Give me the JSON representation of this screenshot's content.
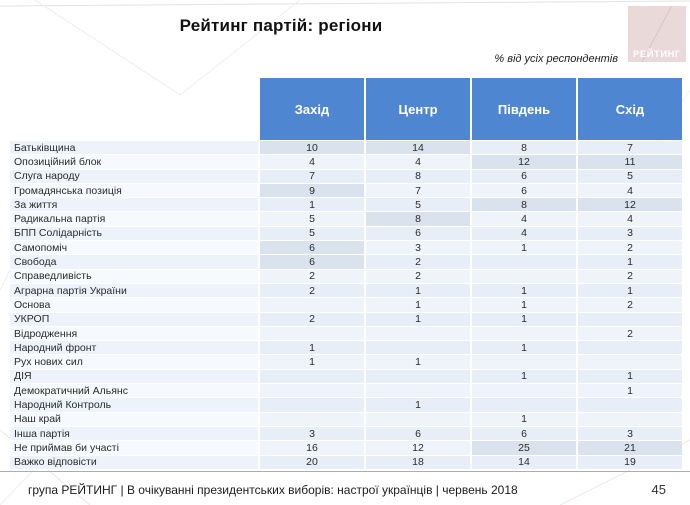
{
  "slide": {
    "title": "Рейтинг партій: регіони",
    "subtitle": "% від усіх респондентів",
    "logo_text": "РЕЙТИНГ",
    "footer": "група РЕЙТИНГ  | В очікуванні президентських виборів: настрої українців |  червень 2018",
    "page_number": "45"
  },
  "colors": {
    "header_blue": "#4e86d2",
    "row_blue": "#e7eef8",
    "highlight_gray_blue": "#d9e2ed",
    "logo_pink": "#e9dad9"
  },
  "chart_data": {
    "type": "table",
    "title": "Рейтинг партій: регіони",
    "unit_note": "% від усіх респондентів",
    "columns": [
      "Захід",
      "Центр",
      "Південь",
      "Схід"
    ],
    "rows": [
      {
        "label": "Батьківщина",
        "values": [
          "10",
          "14",
          "8",
          "7"
        ],
        "highlight": [
          0,
          1
        ]
      },
      {
        "label": "Опозиційний блок",
        "values": [
          "4",
          "4",
          "12",
          "11"
        ],
        "highlight": [
          2,
          3
        ]
      },
      {
        "label": "Слуга народу",
        "values": [
          "7",
          "8",
          "6",
          "5"
        ],
        "highlight": []
      },
      {
        "label": "Громадянська позиція",
        "values": [
          "9",
          "7",
          "6",
          "4"
        ],
        "highlight": [
          0
        ]
      },
      {
        "label": "За життя",
        "values": [
          "1",
          "5",
          "8",
          "12"
        ],
        "highlight": [
          2,
          3
        ]
      },
      {
        "label": "Радикальна партія",
        "values": [
          "5",
          "8",
          "4",
          "4"
        ],
        "highlight": [
          1
        ]
      },
      {
        "label": "БПП Солідарність",
        "values": [
          "5",
          "6",
          "4",
          "3"
        ],
        "highlight": []
      },
      {
        "label": "Самопоміч",
        "values": [
          "6",
          "3",
          "1",
          "2"
        ],
        "highlight": [
          0
        ]
      },
      {
        "label": "Свобода",
        "values": [
          "6",
          "2",
          "",
          "1"
        ],
        "highlight": [
          0
        ]
      },
      {
        "label": "Справедливість",
        "values": [
          "2",
          "2",
          "",
          "2"
        ],
        "highlight": []
      },
      {
        "label": "Аграрна партія України",
        "values": [
          "2",
          "1",
          "1",
          "1"
        ],
        "highlight": []
      },
      {
        "label": "Основа",
        "values": [
          "",
          "1",
          "1",
          "2"
        ],
        "highlight": []
      },
      {
        "label": "УКРОП",
        "values": [
          "2",
          "1",
          "1",
          ""
        ],
        "highlight": []
      },
      {
        "label": "Відродження",
        "values": [
          "",
          "",
          "",
          "2"
        ],
        "highlight": []
      },
      {
        "label": "Народний фронт",
        "values": [
          "1",
          "",
          "1",
          ""
        ],
        "highlight": []
      },
      {
        "label": "Рух нових сил",
        "values": [
          "1",
          "1",
          "",
          ""
        ],
        "highlight": []
      },
      {
        "label": "ДІЯ",
        "values": [
          "",
          "",
          "1",
          "1"
        ],
        "highlight": []
      },
      {
        "label": "Демократичний Альянс",
        "values": [
          "",
          "",
          "",
          "1"
        ],
        "highlight": []
      },
      {
        "label": "Народний Контроль",
        "values": [
          "",
          "1",
          "",
          ""
        ],
        "highlight": []
      },
      {
        "label": "Наш край",
        "values": [
          "",
          "",
          "1",
          ""
        ],
        "highlight": []
      },
      {
        "label": "Інша партія",
        "values": [
          "3",
          "6",
          "6",
          "3"
        ],
        "highlight": []
      },
      {
        "label": "Не приймав би участі",
        "values": [
          "16",
          "12",
          "25",
          "21"
        ],
        "highlight": [
          2,
          3
        ]
      },
      {
        "label": "Важко відповісти",
        "values": [
          "20",
          "18",
          "14",
          "19"
        ],
        "highlight": []
      }
    ]
  }
}
